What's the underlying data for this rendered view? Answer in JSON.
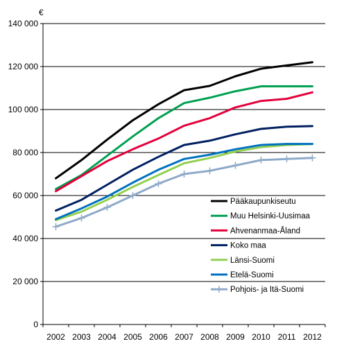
{
  "chart_data": {
    "type": "line",
    "y_unit": "€",
    "x": [
      "2002",
      "2003",
      "2004",
      "2005",
      "2006",
      "2007",
      "2008",
      "2009",
      "2010",
      "2011",
      "2012"
    ],
    "ylim": [
      0,
      140000
    ],
    "yticks": [
      "0",
      "20 000",
      "40 000",
      "60 000",
      "80 000",
      "100 000",
      "120 000",
      "140 000"
    ],
    "ytick_values": [
      0,
      20000,
      40000,
      60000,
      80000,
      100000,
      120000,
      140000
    ],
    "grid": "horizontal major gridlines",
    "legend_position": "bottom-right",
    "series": [
      {
        "name": "Pääkaupunkiseutu",
        "color": "#000000",
        "marker": "none",
        "values": [
          68000,
          76500,
          86000,
          95000,
          102500,
          109000,
          111000,
          115500,
          119000,
          120500,
          122000
        ]
      },
      {
        "name": "Muu Helsinki-Uusimaa",
        "color": "#00A050",
        "marker": "none",
        "values": [
          63000,
          69500,
          78500,
          87500,
          96000,
          103000,
          105500,
          108500,
          110800,
          110800,
          110800
        ]
      },
      {
        "name": "Ahvenanmaa-Åland",
        "color": "#E2003C",
        "marker": "none",
        "values": [
          62000,
          69000,
          76000,
          81500,
          86500,
          92500,
          96000,
          101000,
          104000,
          105000,
          108000
        ]
      },
      {
        "name": "Koko maa",
        "color": "#002060",
        "marker": "none",
        "values": [
          53000,
          58000,
          65000,
          72000,
          78000,
          83500,
          85500,
          88500,
          91000,
          92000,
          92300
        ]
      },
      {
        "name": "Länsi-Suomi",
        "color": "#92D050",
        "marker": "none",
        "values": [
          48500,
          52500,
          58000,
          64000,
          69500,
          75000,
          77500,
          80500,
          82500,
          83500,
          84000
        ]
      },
      {
        "name": "Etelä-Suomi",
        "color": "#0070C0",
        "marker": "none",
        "values": [
          49000,
          54000,
          59500,
          66000,
          72000,
          77000,
          79000,
          81500,
          83500,
          84000,
          84000
        ]
      },
      {
        "name": "Pohjois- ja Itä-Suomi",
        "color": "#8EA9C8",
        "marker": "plus",
        "values": [
          45500,
          49500,
          54500,
          60000,
          65500,
          70000,
          71500,
          74000,
          76500,
          77000,
          77500
        ]
      }
    ]
  }
}
